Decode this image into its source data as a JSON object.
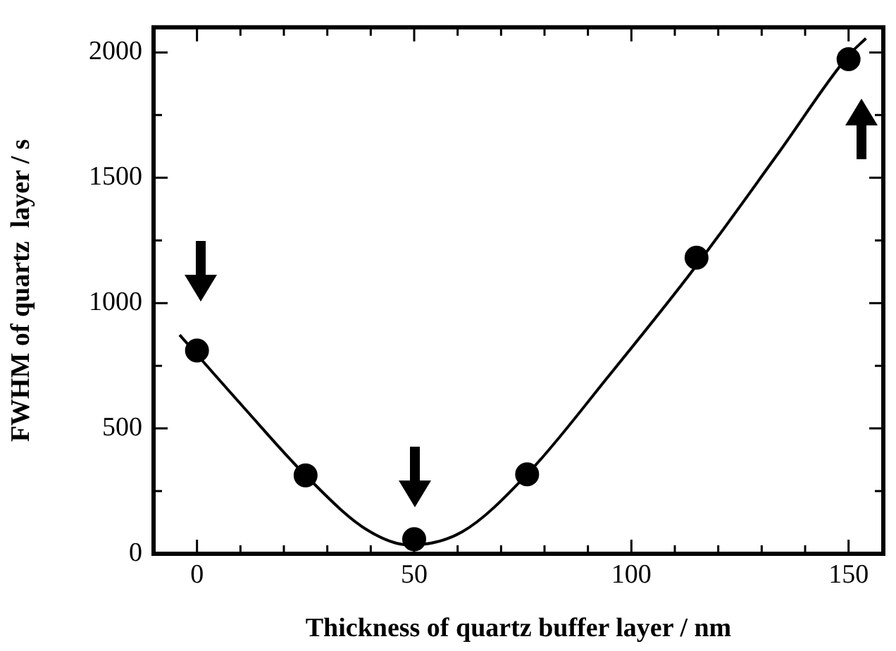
{
  "chart_data": {
    "type": "scatter",
    "xlabel": "Thickness of quartz buffer layer / nm",
    "ylabel": "FWHM of quartz  layer / s",
    "xlim": [
      -10,
      158
    ],
    "ylim": [
      0,
      2100
    ],
    "xticks": [
      {
        "value": -10,
        "label": null
      },
      0,
      {
        "value": 10,
        "label": null
      },
      {
        "value": 20,
        "label": null
      },
      {
        "value": 30,
        "label": null
      },
      {
        "value": 40,
        "label": null
      },
      50,
      {
        "value": 60,
        "label": null
      },
      {
        "value": 70,
        "label": null
      },
      {
        "value": 80,
        "label": null
      },
      {
        "value": 90,
        "label": null
      },
      100,
      {
        "value": 110,
        "label": null
      },
      {
        "value": 120,
        "label": null
      },
      {
        "value": 130,
        "label": null
      },
      {
        "value": 140,
        "label": null
      },
      150
    ],
    "yticks": [
      0,
      {
        "value": 250,
        "label": null
      },
      500,
      {
        "value": 750,
        "label": null
      },
      1000,
      {
        "value": 1250,
        "label": null
      },
      1500,
      {
        "value": 1750,
        "label": null
      },
      2000
    ],
    "series": [
      {
        "type": "line",
        "color": "#000000",
        "marker": "none",
        "x": [
          -4,
          11,
          25,
          39,
          49,
          61,
          76,
          95,
          114.5,
          134,
          150,
          154
        ],
        "values": [
          873,
          579,
          313,
          97,
          35,
          87,
          317,
          714,
          1139,
          1602,
          1988,
          2056
        ]
      },
      {
        "type": "scatter",
        "color": "#000000",
        "marker": "circle",
        "x": [
          0,
          25,
          50,
          76,
          115,
          150
        ],
        "values": [
          811,
          313,
          58,
          317,
          1181,
          1973
        ]
      }
    ]
  }
}
